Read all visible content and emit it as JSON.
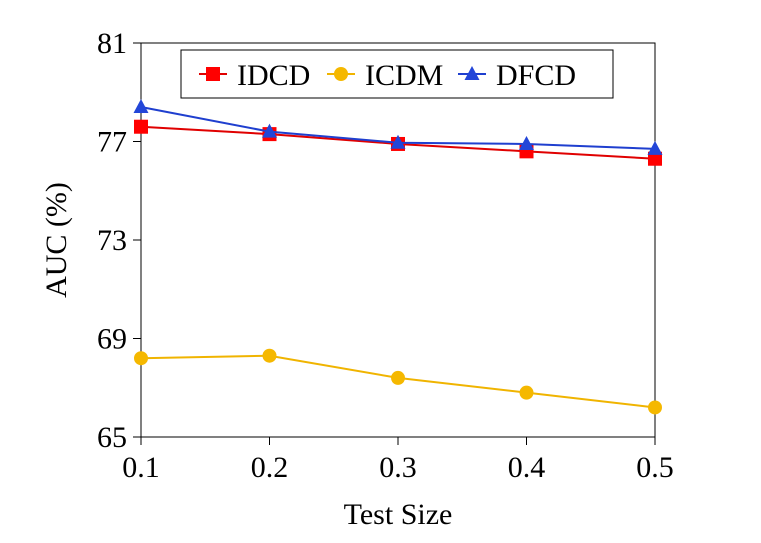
{
  "chart_data": {
    "type": "line",
    "title": "",
    "xlabel": "Test Size",
    "ylabel": "AUC (%)",
    "x": [
      0.1,
      0.2,
      0.3,
      0.4,
      0.5
    ],
    "x_tick_labels": [
      "0.1",
      "0.2",
      "0.3",
      "0.4",
      "0.5"
    ],
    "y_ticks": [
      65,
      69,
      73,
      77,
      81
    ],
    "y_tick_labels": [
      "65",
      "69",
      "73",
      "77",
      "81"
    ],
    "ylim": [
      65,
      81
    ],
    "grid": false,
    "legend_position": "top",
    "series": [
      {
        "name": "IDCD",
        "marker": "square",
        "color": "#e00000",
        "marker_color": "#ff0000",
        "values": [
          77.6,
          77.3,
          76.9,
          76.6,
          76.3
        ]
      },
      {
        "name": "ICDM",
        "marker": "circle",
        "color": "#f0b400",
        "marker_color": "#f5b800",
        "values": [
          68.2,
          68.3,
          67.4,
          66.8,
          66.2
        ]
      },
      {
        "name": "DFCD",
        "marker": "triangle",
        "color": "#1f3fcf",
        "marker_color": "#2346d8",
        "values": [
          78.4,
          77.4,
          76.95,
          76.9,
          76.7
        ]
      }
    ]
  }
}
